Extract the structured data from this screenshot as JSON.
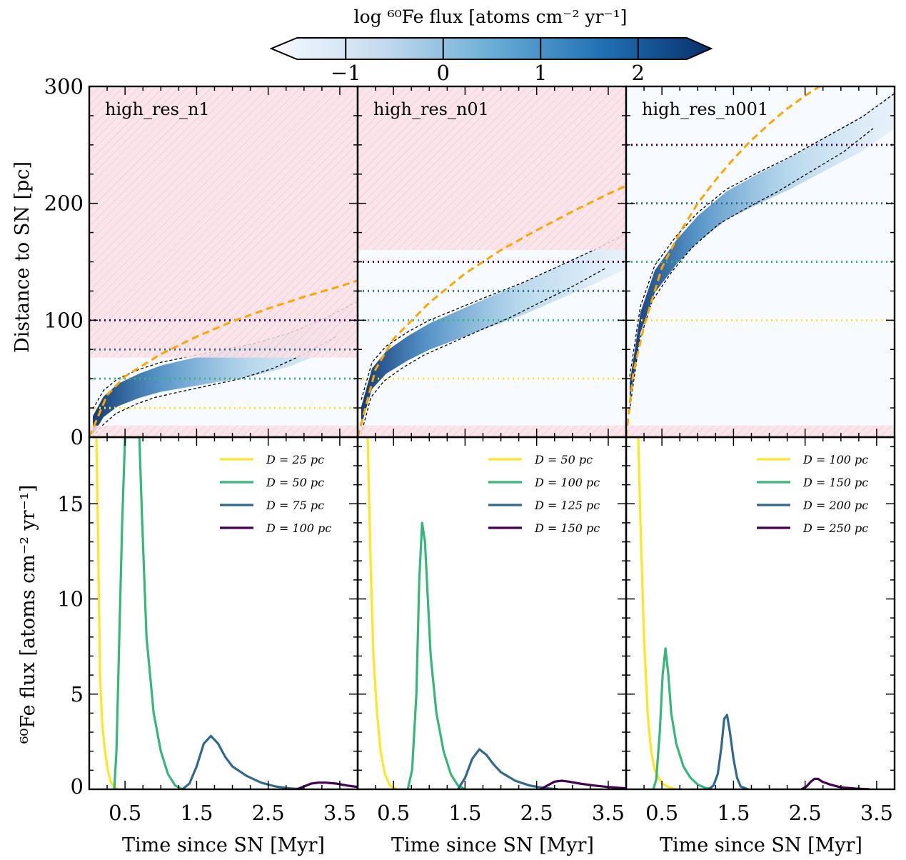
{
  "colorbar": {
    "title": "log ⁶⁰Fe flux [atoms cm⁻² yr⁻¹]",
    "ticks": [
      "−1",
      "0",
      "1",
      "2"
    ],
    "range": [
      -1.5,
      2.5
    ]
  },
  "shared": {
    "xlabel": "Time since SN [Myr]",
    "xticks": [
      "0.5",
      "1.5",
      "2.5",
      "3.5"
    ],
    "xlim": [
      0,
      3.75
    ],
    "top_ylabel": "Distance to SN [pc]",
    "top_yticks": [
      "0",
      "100",
      "200",
      "300"
    ],
    "top_ylim": [
      0,
      300
    ],
    "bottom_ylabel": "⁶⁰Fe flux [atoms cm⁻² yr⁻¹]",
    "bottom_yticks": [
      "0",
      "5",
      "10",
      "15"
    ],
    "bottom_ylim": [
      0,
      18.5
    ]
  },
  "colors": {
    "yellow": "#fde725",
    "green": "#35b779",
    "blue": "#31688e",
    "purple": "#440154",
    "orange": "#ffa500",
    "hatch": "#f4b6c2"
  },
  "chart_data": [
    {
      "type": "heatmap",
      "title": "high_res_n1",
      "masked_regions": [
        [
          0,
          10
        ],
        [
          68,
          300
        ]
      ],
      "front": {
        "x": [
          0,
          0.25,
          0.5,
          1.0,
          1.5,
          2.0,
          2.5,
          3.0,
          3.5,
          3.75
        ],
        "y": [
          0,
          36,
          52,
          71,
          86,
          99,
          110,
          120,
          129,
          134
        ]
      },
      "band": {
        "x": [
          0.05,
          0.2,
          0.4,
          0.7,
          1.0,
          1.4,
          1.8,
          2.3,
          2.8,
          3.3,
          3.75
        ],
        "y": [
          12,
          28,
          38,
          46,
          52,
          57,
          62,
          68,
          77,
          90,
          104
        ]
      },
      "distances": [
        {
          "label": "D = 25 pc",
          "value": 25,
          "color": "yellow"
        },
        {
          "label": "D = 50 pc",
          "value": 50,
          "color": "green"
        },
        {
          "label": "D = 75 pc",
          "value": 75,
          "color": "blue"
        },
        {
          "label": "D = 100 pc",
          "value": 100,
          "color": "purple"
        }
      ],
      "series": [
        {
          "name": "D = 25 pc",
          "color": "yellow",
          "x": [
            0.05,
            0.08,
            0.1,
            0.12,
            0.15,
            0.18,
            0.22,
            0.26,
            0.3,
            0.35,
            0.4
          ],
          "y": [
            18.5,
            18.5,
            18.5,
            14,
            6,
            3.5,
            2,
            1,
            0.4,
            0.1,
            0
          ]
        },
        {
          "name": "D = 50 pc",
          "color": "green",
          "x": [
            0.35,
            0.38,
            0.42,
            0.46,
            0.5,
            0.54,
            0.7,
            0.74,
            0.8,
            0.9,
            1.0,
            1.1,
            1.2,
            1.3
          ],
          "y": [
            0,
            2,
            8,
            14,
            18.5,
            18.5,
            18.5,
            14,
            8,
            4,
            2,
            0.8,
            0.2,
            0
          ]
        },
        {
          "name": "D = 75 pc",
          "color": "blue",
          "x": [
            1.3,
            1.4,
            1.5,
            1.6,
            1.7,
            1.8,
            1.9,
            2.0,
            2.2,
            2.4,
            2.6,
            2.8,
            3.0
          ],
          "y": [
            0,
            0.3,
            1.2,
            2.4,
            2.8,
            2.4,
            1.7,
            1.2,
            0.7,
            0.35,
            0.15,
            0.05,
            0
          ]
        },
        {
          "name": "D = 100 pc",
          "color": "purple",
          "x": [
            2.9,
            3.0,
            3.1,
            3.2,
            3.3,
            3.45,
            3.6,
            3.75
          ],
          "y": [
            0,
            0.15,
            0.3,
            0.35,
            0.35,
            0.3,
            0.2,
            0.12
          ]
        }
      ]
    },
    {
      "type": "heatmap",
      "title": "high_res_n01",
      "masked_regions": [
        [
          0,
          10
        ],
        [
          160,
          300
        ]
      ],
      "front": {
        "x": [
          0,
          0.25,
          0.5,
          1.0,
          1.5,
          2.0,
          2.5,
          3.0,
          3.5,
          3.75
        ],
        "y": [
          0,
          58,
          84,
          115,
          140,
          160,
          177,
          193,
          208,
          215
        ]
      },
      "band": {
        "x": [
          0.05,
          0.2,
          0.4,
          0.7,
          1.0,
          1.4,
          1.8,
          2.3,
          2.8,
          3.3,
          3.75
        ],
        "y": [
          20,
          52,
          66,
          78,
          88,
          98,
          108,
          120,
          134,
          148,
          162
        ]
      },
      "distances": [
        {
          "label": "D = 50 pc",
          "value": 50,
          "color": "yellow"
        },
        {
          "label": "D = 100 pc",
          "value": 100,
          "color": "green"
        },
        {
          "label": "D = 125 pc",
          "value": 125,
          "color": "blue"
        },
        {
          "label": "D = 150 pc",
          "value": 150,
          "color": "purple"
        }
      ],
      "series": [
        {
          "name": "D = 50 pc",
          "color": "yellow",
          "x": [
            0.08,
            0.1,
            0.14,
            0.18,
            0.22,
            0.27,
            0.32,
            0.38,
            0.45,
            0.55
          ],
          "y": [
            18.5,
            18.5,
            18.5,
            12,
            7,
            4,
            2,
            0.8,
            0.2,
            0
          ]
        },
        {
          "name": "D = 100 pc",
          "color": "green",
          "x": [
            0.7,
            0.76,
            0.82,
            0.86,
            0.9,
            0.94,
            0.98,
            1.02,
            1.1,
            1.2,
            1.3,
            1.4,
            1.5
          ],
          "y": [
            0,
            1,
            5,
            11,
            14,
            13,
            10,
            7,
            4,
            2,
            0.8,
            0.2,
            0
          ]
        },
        {
          "name": "D = 125 pc",
          "color": "blue",
          "x": [
            1.4,
            1.5,
            1.6,
            1.7,
            1.8,
            1.9,
            2.0,
            2.2,
            2.4,
            2.6,
            2.8
          ],
          "y": [
            0,
            0.6,
            1.6,
            2.1,
            1.8,
            1.3,
            0.9,
            0.45,
            0.2,
            0.07,
            0
          ]
        },
        {
          "name": "D = 150 pc",
          "color": "purple",
          "x": [
            2.55,
            2.65,
            2.75,
            2.85,
            2.95,
            3.1,
            3.3,
            3.5,
            3.75
          ],
          "y": [
            0,
            0.2,
            0.4,
            0.45,
            0.4,
            0.3,
            0.2,
            0.12,
            0.05
          ]
        }
      ]
    },
    {
      "type": "heatmap",
      "title": "high_res_n001",
      "masked_regions": [
        [
          0,
          10
        ]
      ],
      "front": {
        "x": [
          0,
          0.1,
          0.25,
          0.5,
          0.75,
          1.0,
          1.25,
          1.5,
          1.75,
          2.0,
          2.25,
          2.5,
          2.75
        ],
        "y": [
          0,
          55,
          95,
          145,
          175,
          200,
          220,
          238,
          254,
          268,
          281,
          292,
          302
        ]
      },
      "band": {
        "x": [
          0.05,
          0.2,
          0.4,
          0.7,
          1.0,
          1.4,
          1.8,
          2.3,
          2.8,
          3.3,
          3.75
        ],
        "y": [
          40,
          100,
          135,
          160,
          180,
          200,
          213,
          228,
          245,
          262,
          282
        ]
      },
      "distances": [
        {
          "label": "D = 100 pc",
          "value": 100,
          "color": "yellow"
        },
        {
          "label": "D = 150 pc",
          "value": 150,
          "color": "green"
        },
        {
          "label": "D = 200 pc",
          "value": 200,
          "color": "blue"
        },
        {
          "label": "D = 250 pc",
          "value": 250,
          "color": "purple"
        }
      ],
      "series": [
        {
          "name": "D = 100 pc",
          "color": "yellow",
          "x": [
            0.1,
            0.13,
            0.17,
            0.2,
            0.25,
            0.3,
            0.35,
            0.4,
            0.5,
            0.6,
            0.7
          ],
          "y": [
            18.5,
            18.5,
            18.5,
            14,
            8,
            4,
            2,
            1,
            0.3,
            0.1,
            0
          ]
        },
        {
          "name": "D = 150 pc",
          "color": "green",
          "x": [
            0.38,
            0.42,
            0.47,
            0.51,
            0.55,
            0.59,
            0.63,
            0.7,
            0.8,
            0.9,
            1.0,
            1.1,
            1.2
          ],
          "y": [
            0,
            0.5,
            3,
            6,
            7.4,
            6,
            4,
            2.4,
            1.2,
            0.6,
            0.25,
            0.08,
            0
          ]
        },
        {
          "name": "D = 200 pc",
          "color": "blue",
          "x": [
            1.15,
            1.22,
            1.28,
            1.33,
            1.37,
            1.41,
            1.45,
            1.5,
            1.55,
            1.6,
            1.7
          ],
          "y": [
            0,
            0.2,
            0.8,
            2.2,
            3.7,
            3.9,
            3.0,
            1.6,
            0.6,
            0.15,
            0
          ]
        },
        {
          "name": "D = 250 pc",
          "color": "purple",
          "x": [
            2.45,
            2.52,
            2.58,
            2.63,
            2.68,
            2.74,
            2.85,
            3.0,
            3.2,
            3.4
          ],
          "y": [
            0,
            0.15,
            0.4,
            0.55,
            0.55,
            0.4,
            0.25,
            0.1,
            0.04,
            0
          ]
        }
      ]
    }
  ]
}
